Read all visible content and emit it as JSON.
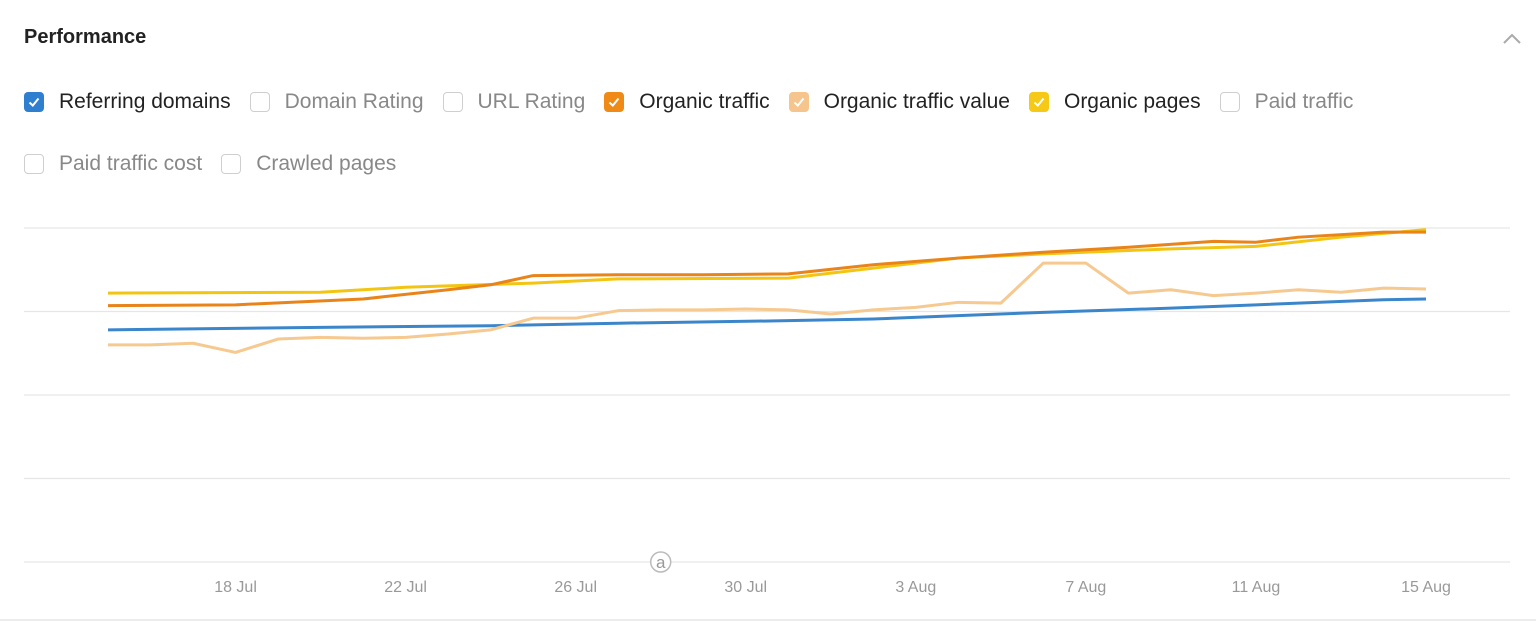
{
  "title": "Performance",
  "collapse_icon": "chevron-up-icon",
  "legend": [
    {
      "label": "Referring domains",
      "checked": true,
      "color": "#2f7fd1"
    },
    {
      "label": "Domain Rating",
      "checked": false
    },
    {
      "label": "URL Rating",
      "checked": false
    },
    {
      "label": "Organic traffic",
      "checked": true,
      "color": "#ef8a17"
    },
    {
      "label": "Organic traffic value",
      "checked": true,
      "color": "#f6c58d"
    },
    {
      "label": "Organic pages",
      "checked": true,
      "color": "#f5c915"
    },
    {
      "label": "Paid traffic",
      "checked": false
    },
    {
      "label": "Paid traffic cost",
      "checked": false
    },
    {
      "label": "Crawled pages",
      "checked": false
    }
  ],
  "chart_data": {
    "type": "line",
    "xlabel": "",
    "ylabel": "",
    "x_ticks": [
      "18 Jul",
      "22 Jul",
      "26 Jul",
      "30 Jul",
      "3 Aug",
      "7 Aug",
      "11 Aug",
      "15 Aug"
    ],
    "xlim": [
      "15 Jul",
      "15 Aug"
    ],
    "ylim": [
      0,
      4
    ],
    "y_ticks_shown": false,
    "grid": true,
    "annotation": "a",
    "annotation_date": "28 Jul",
    "series": [
      {
        "name": "Referring domains",
        "color": "#3b86cb",
        "points": [
          [
            "15 Jul",
            2.78
          ],
          [
            "20 Jul",
            2.81
          ],
          [
            "24 Jul",
            2.83
          ],
          [
            "27 Jul",
            2.86
          ],
          [
            "31 Jul",
            2.89
          ],
          [
            "2 Aug",
            2.91
          ],
          [
            "4 Aug",
            2.95
          ],
          [
            "6 Aug",
            2.99
          ],
          [
            "9 Aug",
            3.04
          ],
          [
            "11 Aug",
            3.08
          ],
          [
            "14 Aug",
            3.14
          ],
          [
            "15 Aug",
            3.15
          ]
        ]
      },
      {
        "name": "Organic traffic value",
        "color": "#f6c990",
        "points": [
          [
            "15 Jul",
            2.6
          ],
          [
            "16 Jul",
            2.6
          ],
          [
            "17 Jul",
            2.62
          ],
          [
            "18 Jul",
            2.51
          ],
          [
            "19 Jul",
            2.67
          ],
          [
            "20 Jul",
            2.69
          ],
          [
            "21 Jul",
            2.68
          ],
          [
            "22 Jul",
            2.69
          ],
          [
            "23 Jul",
            2.73
          ],
          [
            "24 Jul",
            2.78
          ],
          [
            "25 Jul",
            2.92
          ],
          [
            "26 Jul",
            2.92
          ],
          [
            "27 Jul",
            3.01
          ],
          [
            "28 Jul",
            3.02
          ],
          [
            "29 Jul",
            3.02
          ],
          [
            "30 Jul",
            3.03
          ],
          [
            "31 Jul",
            3.02
          ],
          [
            "1 Aug",
            2.97
          ],
          [
            "2 Aug",
            3.02
          ],
          [
            "3 Aug",
            3.05
          ],
          [
            "4 Aug",
            3.11
          ],
          [
            "5 Aug",
            3.1
          ],
          [
            "6 Aug",
            3.58
          ],
          [
            "7 Aug",
            3.58
          ],
          [
            "8 Aug",
            3.22
          ],
          [
            "9 Aug",
            3.26
          ],
          [
            "10 Aug",
            3.19
          ],
          [
            "11 Aug",
            3.22
          ],
          [
            "12 Aug",
            3.26
          ],
          [
            "13 Aug",
            3.23
          ],
          [
            "14 Aug",
            3.28
          ],
          [
            "15 Aug",
            3.27
          ]
        ]
      },
      {
        "name": "Organic pages",
        "color": "#f2c511",
        "points": [
          [
            "15 Jul",
            3.22
          ],
          [
            "20 Jul",
            3.23
          ],
          [
            "22 Jul",
            3.29
          ],
          [
            "25 Jul",
            3.34
          ],
          [
            "27 Jul",
            3.39
          ],
          [
            "31 Jul",
            3.4
          ],
          [
            "2 Aug",
            3.52
          ],
          [
            "4 Aug",
            3.64
          ],
          [
            "6 Aug",
            3.69
          ],
          [
            "9 Aug",
            3.75
          ],
          [
            "11 Aug",
            3.78
          ],
          [
            "13 Aug",
            3.89
          ],
          [
            "15 Aug",
            3.98
          ]
        ]
      },
      {
        "name": "Organic traffic",
        "color": "#e8841a",
        "points": [
          [
            "15 Jul",
            3.07
          ],
          [
            "18 Jul",
            3.08
          ],
          [
            "21 Jul",
            3.15
          ],
          [
            "23 Jul",
            3.26
          ],
          [
            "24 Jul",
            3.32
          ],
          [
            "25 Jul",
            3.43
          ],
          [
            "27 Jul",
            3.44
          ],
          [
            "29 Jul",
            3.44
          ],
          [
            "31 Jul",
            3.45
          ],
          [
            "2 Aug",
            3.56
          ],
          [
            "4 Aug",
            3.64
          ],
          [
            "6 Aug",
            3.71
          ],
          [
            "8 Aug",
            3.77
          ],
          [
            "10 Aug",
            3.84
          ],
          [
            "11 Aug",
            3.83
          ],
          [
            "12 Aug",
            3.89
          ],
          [
            "14 Aug",
            3.95
          ],
          [
            "15 Aug",
            3.95
          ]
        ]
      }
    ]
  }
}
